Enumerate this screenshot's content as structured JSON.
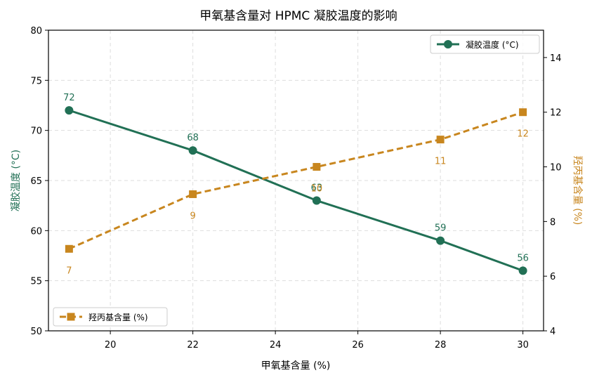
{
  "chart_data": {
    "type": "line",
    "title": "甲氧基含量对 HPMC 凝胶温度的影响",
    "xlabel": "甲氧基含量 (%)",
    "x": [
      19,
      22,
      25,
      28,
      30
    ],
    "xlim": [
      18.5,
      30.5
    ],
    "xticks": [
      20,
      22,
      24,
      26,
      28,
      30
    ],
    "grid": true,
    "series": [
      {
        "name": "凝胶温度 (°C)",
        "axis": "left",
        "values": [
          72,
          68,
          63,
          59,
          56
        ],
        "color": "#217055",
        "style": "solid",
        "marker": "circle"
      },
      {
        "name": "羟丙基含量 (%)",
        "axis": "right",
        "values": [
          7,
          9,
          10,
          11,
          12
        ],
        "color": "#c8861e",
        "style": "dashed",
        "marker": "square"
      }
    ],
    "y_left": {
      "label": "凝胶温度 (°C)",
      "ylim": [
        50,
        80
      ],
      "ticks": [
        50,
        55,
        60,
        65,
        70,
        75,
        80
      ],
      "color": "#217055"
    },
    "y_right": {
      "label": "羟丙基含量 (%)",
      "ylim": [
        4,
        15
      ],
      "ticks": [
        4,
        6,
        8,
        10,
        12,
        14
      ],
      "color": "#c8861e"
    },
    "legends": [
      {
        "series": 0,
        "placement": "top-right"
      },
      {
        "series": 1,
        "placement": "bottom-left"
      }
    ]
  }
}
